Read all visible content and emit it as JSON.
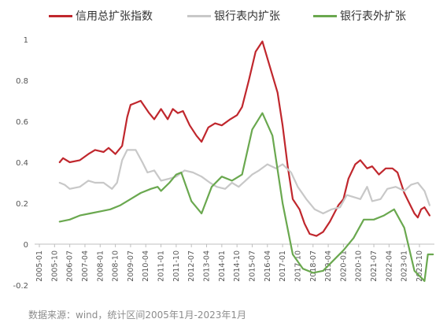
{
  "chart_data": {
    "type": "line",
    "title": "",
    "xlabel": "",
    "ylabel": "",
    "ylim": [
      -0.2,
      1.0
    ],
    "yticks": [
      -0.2,
      0,
      0.2,
      0.4,
      0.6,
      0.8,
      1
    ],
    "ytick_labels": [
      "-0.2",
      "0",
      "0.2",
      "0.4",
      "0.6",
      "0.8",
      "1"
    ],
    "x_domain": [
      "2005-01",
      "2023-10"
    ],
    "xtick_labels": [
      "2005-01",
      "2005-10",
      "2006-07",
      "2007-04",
      "2008-01",
      "2008-10",
      "2009-07",
      "2010-04",
      "2011-01",
      "2011-10",
      "2012-07",
      "2013-04",
      "2014-01",
      "2014-10",
      "2015-07",
      "2016-04",
      "2017-01",
      "2017-10",
      "2018-07",
      "2019-04",
      "2020-01",
      "2020-10",
      "2021-07",
      "2022-04",
      "2023-01",
      "2023-10"
    ],
    "grid": false,
    "legend_position": "top",
    "series": [
      {
        "name": "信用总扩张指数",
        "color": "#c0272d",
        "points": [
          [
            "2006-01",
            0.4
          ],
          [
            "2006-03",
            0.42
          ],
          [
            "2006-07",
            0.4
          ],
          [
            "2007-01",
            0.41
          ],
          [
            "2007-06",
            0.44
          ],
          [
            "2007-10",
            0.46
          ],
          [
            "2008-03",
            0.45
          ],
          [
            "2008-06",
            0.47
          ],
          [
            "2008-10",
            0.44
          ],
          [
            "2009-02",
            0.48
          ],
          [
            "2009-05",
            0.62
          ],
          [
            "2009-07",
            0.68
          ],
          [
            "2009-10",
            0.69
          ],
          [
            "2010-01",
            0.7
          ],
          [
            "2010-06",
            0.64
          ],
          [
            "2010-09",
            0.61
          ],
          [
            "2011-01",
            0.66
          ],
          [
            "2011-05",
            0.61
          ],
          [
            "2011-08",
            0.66
          ],
          [
            "2011-11",
            0.64
          ],
          [
            "2012-02",
            0.65
          ],
          [
            "2012-06",
            0.58
          ],
          [
            "2012-10",
            0.53
          ],
          [
            "2013-01",
            0.5
          ],
          [
            "2013-05",
            0.57
          ],
          [
            "2013-09",
            0.59
          ],
          [
            "2014-01",
            0.58
          ],
          [
            "2014-06",
            0.61
          ],
          [
            "2014-10",
            0.63
          ],
          [
            "2015-01",
            0.67
          ],
          [
            "2015-05",
            0.8
          ],
          [
            "2015-09",
            0.94
          ],
          [
            "2016-01",
            0.99
          ],
          [
            "2016-05",
            0.88
          ],
          [
            "2016-10",
            0.74
          ],
          [
            "2017-01",
            0.58
          ],
          [
            "2017-04",
            0.38
          ],
          [
            "2017-07",
            0.22
          ],
          [
            "2017-11",
            0.17
          ],
          [
            "2018-02",
            0.1
          ],
          [
            "2018-05",
            0.05
          ],
          [
            "2018-09",
            0.04
          ],
          [
            "2019-01",
            0.06
          ],
          [
            "2019-05",
            0.11
          ],
          [
            "2019-10",
            0.19
          ],
          [
            "2020-01",
            0.22
          ],
          [
            "2020-04",
            0.32
          ],
          [
            "2020-08",
            0.39
          ],
          [
            "2020-11",
            0.41
          ],
          [
            "2021-03",
            0.37
          ],
          [
            "2021-06",
            0.38
          ],
          [
            "2021-10",
            0.34
          ],
          [
            "2022-02",
            0.37
          ],
          [
            "2022-06",
            0.37
          ],
          [
            "2022-09",
            0.35
          ],
          [
            "2023-01",
            0.25
          ],
          [
            "2023-04",
            0.2
          ],
          [
            "2023-07",
            0.15
          ],
          [
            "2023-09",
            0.13
          ],
          [
            "2023-11",
            0.17
          ],
          [
            "2024-01",
            0.18
          ],
          [
            "2024-04",
            0.14
          ]
        ]
      },
      {
        "name": "银行表内扩张",
        "color": "#c8c8c8",
        "points": [
          [
            "2006-01",
            0.3
          ],
          [
            "2006-04",
            0.29
          ],
          [
            "2006-07",
            0.27
          ],
          [
            "2007-01",
            0.28
          ],
          [
            "2007-06",
            0.31
          ],
          [
            "2007-10",
            0.3
          ],
          [
            "2008-03",
            0.3
          ],
          [
            "2008-08",
            0.27
          ],
          [
            "2008-11",
            0.3
          ],
          [
            "2009-02",
            0.41
          ],
          [
            "2009-05",
            0.46
          ],
          [
            "2009-10",
            0.46
          ],
          [
            "2010-02",
            0.4
          ],
          [
            "2010-05",
            0.35
          ],
          [
            "2010-09",
            0.36
          ],
          [
            "2011-01",
            0.31
          ],
          [
            "2011-06",
            0.32
          ],
          [
            "2011-10",
            0.33
          ],
          [
            "2012-03",
            0.36
          ],
          [
            "2012-08",
            0.35
          ],
          [
            "2013-01",
            0.33
          ],
          [
            "2013-06",
            0.3
          ],
          [
            "2013-10",
            0.28
          ],
          [
            "2014-03",
            0.27
          ],
          [
            "2014-07",
            0.3
          ],
          [
            "2014-11",
            0.28
          ],
          [
            "2015-03",
            0.31
          ],
          [
            "2015-07",
            0.34
          ],
          [
            "2015-11",
            0.36
          ],
          [
            "2016-04",
            0.39
          ],
          [
            "2016-09",
            0.37
          ],
          [
            "2017-01",
            0.39
          ],
          [
            "2017-06",
            0.35
          ],
          [
            "2017-10",
            0.28
          ],
          [
            "2018-03",
            0.22
          ],
          [
            "2018-08",
            0.17
          ],
          [
            "2019-01",
            0.15
          ],
          [
            "2019-06",
            0.17
          ],
          [
            "2019-11",
            0.18
          ],
          [
            "2020-03",
            0.24
          ],
          [
            "2020-07",
            0.23
          ],
          [
            "2020-11",
            0.22
          ],
          [
            "2021-03",
            0.28
          ],
          [
            "2021-06",
            0.21
          ],
          [
            "2021-11",
            0.22
          ],
          [
            "2022-03",
            0.27
          ],
          [
            "2022-08",
            0.28
          ],
          [
            "2023-01",
            0.26
          ],
          [
            "2023-05",
            0.29
          ],
          [
            "2023-09",
            0.3
          ],
          [
            "2024-01",
            0.26
          ],
          [
            "2024-04",
            0.19
          ]
        ]
      },
      {
        "name": "银行表外扩张",
        "color": "#6aa84f",
        "points": [
          [
            "2006-01",
            0.11
          ],
          [
            "2006-07",
            0.12
          ],
          [
            "2007-01",
            0.14
          ],
          [
            "2007-07",
            0.15
          ],
          [
            "2008-01",
            0.16
          ],
          [
            "2008-07",
            0.17
          ],
          [
            "2009-01",
            0.19
          ],
          [
            "2009-07",
            0.22
          ],
          [
            "2010-01",
            0.25
          ],
          [
            "2010-07",
            0.27
          ],
          [
            "2010-11",
            0.28
          ],
          [
            "2011-01",
            0.26
          ],
          [
            "2011-06",
            0.3
          ],
          [
            "2011-10",
            0.34
          ],
          [
            "2012-01",
            0.35
          ],
          [
            "2012-07",
            0.21
          ],
          [
            "2013-01",
            0.15
          ],
          [
            "2013-07",
            0.28
          ],
          [
            "2014-01",
            0.33
          ],
          [
            "2014-07",
            0.31
          ],
          [
            "2015-01",
            0.34
          ],
          [
            "2015-07",
            0.56
          ],
          [
            "2016-01",
            0.64
          ],
          [
            "2016-07",
            0.53
          ],
          [
            "2017-01",
            0.2
          ],
          [
            "2017-07",
            -0.05
          ],
          [
            "2018-01",
            -0.12
          ],
          [
            "2018-07",
            -0.14
          ],
          [
            "2019-01",
            -0.13
          ],
          [
            "2019-07",
            -0.08
          ],
          [
            "2020-01",
            -0.03
          ],
          [
            "2020-07",
            0.03
          ],
          [
            "2021-01",
            0.12
          ],
          [
            "2021-07",
            0.12
          ],
          [
            "2022-01",
            0.14
          ],
          [
            "2022-07",
            0.17
          ],
          [
            "2023-01",
            0.08
          ],
          [
            "2023-07",
            -0.13
          ],
          [
            "2024-01",
            -0.18
          ],
          [
            "2024-03",
            -0.05
          ],
          [
            "2024-06",
            -0.05
          ]
        ]
      }
    ]
  },
  "footer": {
    "source": "数据来源：wind，统计区间2005年1月-2023年1月"
  }
}
